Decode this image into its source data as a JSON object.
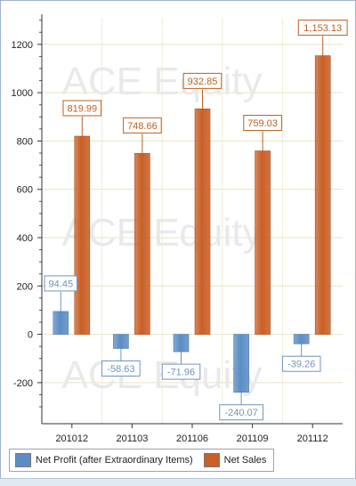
{
  "chart_data": {
    "type": "bar",
    "categories": [
      "201012",
      "201103",
      "201106",
      "201109",
      "201112"
    ],
    "series": [
      {
        "name": "Net Profit (after Extraordinary Items)",
        "values": [
          94.45,
          -58.63,
          -71.96,
          -240.07,
          -39.26
        ],
        "labels": [
          "94.45",
          "-58.63",
          "-71.96",
          "-240.07",
          "-39.26"
        ],
        "color": "#5b8dc4",
        "label_color": "#6f93bd"
      },
      {
        "name": "Net Sales",
        "values": [
          819.99,
          748.66,
          932.85,
          759.03,
          1153.13
        ],
        "labels": [
          "819.99",
          "748.66",
          "932.85",
          "759.03",
          "1,153.13"
        ],
        "color": "#c95f25",
        "label_color": "#b8611f"
      }
    ],
    "ylim": [
      -370,
      1310
    ],
    "yticks": [
      -200,
      0,
      200,
      400,
      600,
      800,
      1000,
      1200
    ],
    "grid": true,
    "legend_position": "bottom-left",
    "watermark": "ACE Equity"
  }
}
